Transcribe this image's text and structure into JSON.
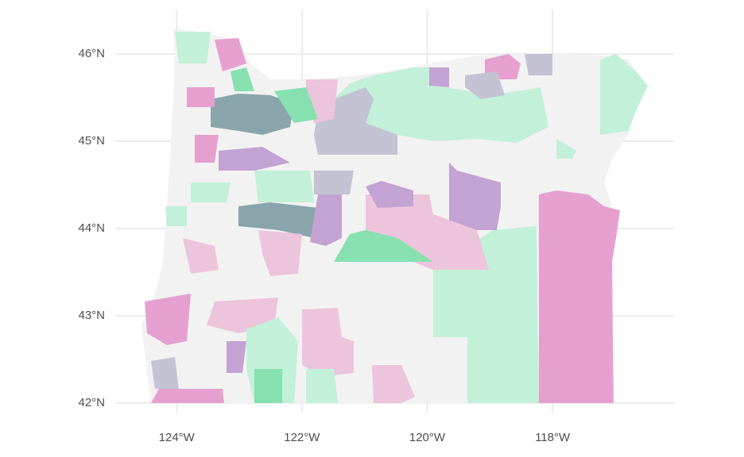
{
  "chart_data": {
    "type": "map",
    "xlim": [
      -124.98,
      -116.06
    ],
    "ylim": [
      41.89,
      46.51
    ],
    "xticks": [
      {
        "value": -124,
        "label": "124°W"
      },
      {
        "value": -122,
        "label": "122°W"
      },
      {
        "value": -120,
        "label": "120°W"
      },
      {
        "value": -118,
        "label": "118°W"
      }
    ],
    "yticks": [
      {
        "value": 42,
        "label": "42°N"
      },
      {
        "value": 43,
        "label": "43°N"
      },
      {
        "value": 44,
        "label": "44°N"
      },
      {
        "value": 45,
        "label": "45°N"
      },
      {
        "value": 46,
        "label": "46°N"
      }
    ],
    "grid": true
  }
}
